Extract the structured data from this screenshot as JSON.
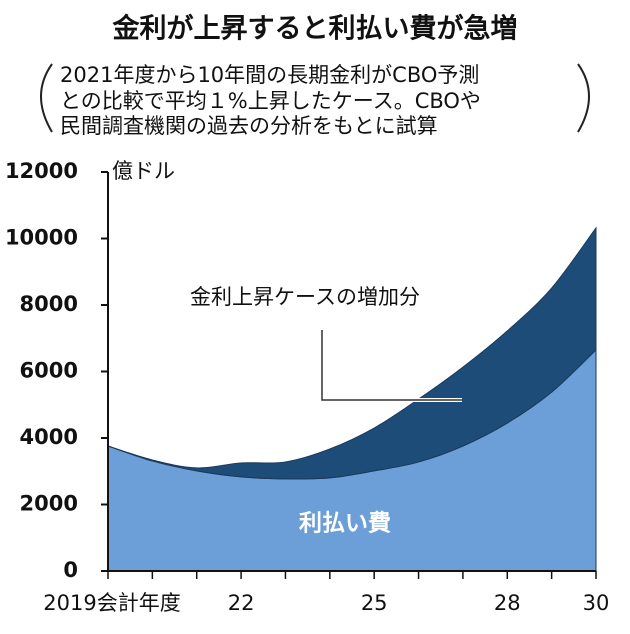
{
  "chart_data": {
    "type": "stacked-area",
    "title": "金利が上昇すると利払い費が急増",
    "subtitle": [
      "2021年度から10年間の長期金利がCBO予測",
      "との比較で平均１%上昇したケース。CBOや",
      "民間調査機関の過去の分析をもとに試算"
    ],
    "y_label": "億ドル",
    "x": [
      2019,
      2020,
      2021,
      2022,
      2023,
      2024,
      2025,
      2026,
      2027,
      2028,
      2029,
      2030
    ],
    "series": [
      {
        "name": "利払い費",
        "color": "#6c9fd8",
        "values": [
          3760,
          3310,
          3010,
          2830,
          2770,
          2800,
          3010,
          3280,
          3760,
          4450,
          5380,
          6650
        ]
      },
      {
        "name": "金利上昇ケースの増加分",
        "color": "#1d4c79",
        "values": [
          0,
          30,
          90,
          420,
          510,
          870,
          1290,
          1890,
          2370,
          2770,
          3130,
          3670
        ]
      }
    ],
    "xlim": [
      2019,
      2030
    ],
    "xticks": [
      {
        "value": 2019,
        "label": "2019会計年度"
      },
      {
        "value": 2022,
        "label": "22"
      },
      {
        "value": 2025,
        "label": "25"
      },
      {
        "value": 2028,
        "label": "28"
      },
      {
        "value": 2030,
        "label": "30"
      }
    ],
    "ylim": [
      0,
      12000
    ],
    "yticks": [
      0,
      2000,
      4000,
      6000,
      8000,
      10000,
      12000
    ],
    "grid": false
  }
}
